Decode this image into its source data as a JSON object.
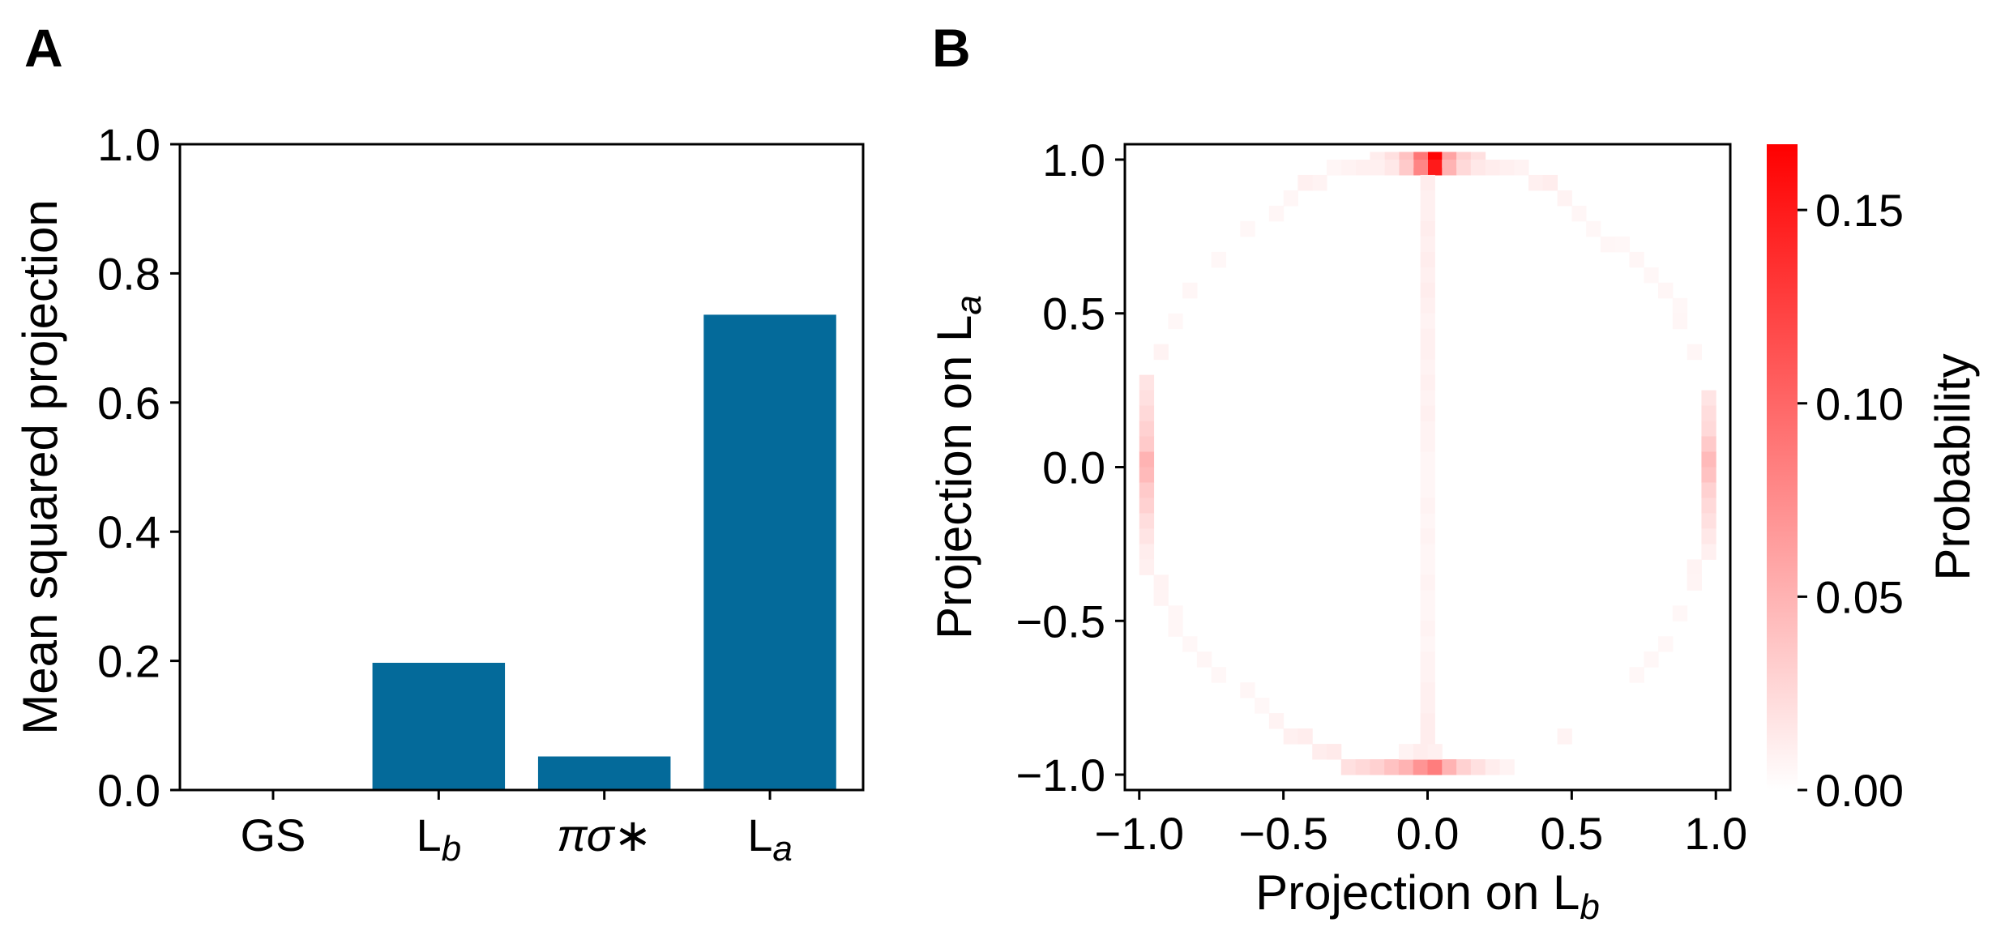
{
  "panel_labels": {
    "a": "A",
    "b": "B"
  },
  "chart_data": [
    {
      "type": "bar",
      "panel": "A",
      "categories": [
        "GS",
        "L_b",
        "πσ*",
        "L_a"
      ],
      "category_labels": [
        {
          "base": "GS",
          "sub": ""
        },
        {
          "base": "L",
          "sub": "b"
        },
        {
          "base": "πσ∗",
          "sub": ""
        },
        {
          "base": "L",
          "sub": "a"
        }
      ],
      "values": [
        0.0,
        0.197,
        0.052,
        0.736
      ],
      "ylabel": "Mean squared projection",
      "xlabel": "",
      "ylim": [
        0.0,
        1.0
      ],
      "yticks": [
        0.0,
        0.2,
        0.4,
        0.6,
        0.8,
        1.0
      ],
      "ytick_labels": [
        "0.0",
        "0.2",
        "0.4",
        "0.6",
        "0.8",
        "1.0"
      ],
      "bar_color": "#046a9a",
      "grid": false
    },
    {
      "type": "heatmap",
      "panel": "B",
      "xlabel": {
        "base": "Projection on L",
        "sub": "b"
      },
      "ylabel": {
        "base": "Projection on L",
        "sub": "a"
      },
      "xlim": [
        -1.05,
        1.05
      ],
      "ylim": [
        -1.05,
        1.05
      ],
      "bins": 42,
      "xticks": [
        -1.0,
        -0.5,
        0.0,
        0.5,
        1.0
      ],
      "xtick_labels": [
        "−1.0",
        "−0.5",
        "0.0",
        "0.5",
        "1.0"
      ],
      "yticks": [
        -1.0,
        -0.5,
        0.0,
        0.5,
        1.0
      ],
      "ytick_labels": [
        "−1.0",
        "−0.5",
        "0.0",
        "0.5",
        "1.0"
      ],
      "cells": [
        [
          0.025,
          1.0,
          0.165
        ],
        [
          0.025,
          0.975,
          0.15
        ],
        [
          -0.025,
          1.0,
          0.09
        ],
        [
          -0.025,
          0.975,
          0.08
        ],
        [
          0.075,
          1.0,
          0.06
        ],
        [
          0.075,
          0.975,
          0.05
        ],
        [
          -0.075,
          1.0,
          0.04
        ],
        [
          -0.075,
          0.975,
          0.035
        ],
        [
          0.125,
          1.0,
          0.03
        ],
        [
          0.125,
          0.975,
          0.025
        ],
        [
          0.175,
          1.0,
          0.02
        ],
        [
          0.175,
          0.975,
          0.015
        ],
        [
          -0.125,
          1.0,
          0.02
        ],
        [
          -0.125,
          0.975,
          0.015
        ],
        [
          -0.175,
          1.0,
          0.012
        ],
        [
          -0.175,
          0.975,
          0.01
        ],
        [
          0.225,
          0.975,
          0.012
        ],
        [
          0.275,
          0.975,
          0.01
        ],
        [
          0.325,
          0.975,
          0.008
        ],
        [
          -0.225,
          0.975,
          0.01
        ],
        [
          -0.275,
          0.975,
          0.008
        ],
        [
          -0.325,
          0.975,
          0.006
        ],
        [
          0.375,
          0.925,
          0.01
        ],
        [
          0.425,
          0.925,
          0.012
        ],
        [
          -0.375,
          0.925,
          0.008
        ],
        [
          -0.425,
          0.925,
          0.01
        ],
        [
          0.475,
          0.875,
          0.008
        ],
        [
          -0.475,
          0.875,
          0.006
        ],
        [
          -0.525,
          0.825,
          0.006
        ],
        [
          0.525,
          0.825,
          0.006
        ],
        [
          0.575,
          0.775,
          0.005
        ],
        [
          0.625,
          0.725,
          0.006
        ],
        [
          0.675,
          0.725,
          0.005
        ],
        [
          0.725,
          0.675,
          0.006
        ],
        [
          -0.625,
          0.775,
          0.005
        ],
        [
          -0.725,
          0.675,
          0.005
        ],
        [
          0.775,
          0.625,
          0.005
        ],
        [
          0.825,
          0.575,
          0.006
        ],
        [
          -0.825,
          0.575,
          0.006
        ],
        [
          0.875,
          0.525,
          0.005
        ],
        [
          0.875,
          0.475,
          0.006
        ],
        [
          -0.875,
          0.475,
          0.005
        ],
        [
          0.925,
          0.375,
          0.006
        ],
        [
          -0.925,
          0.375,
          0.008
        ],
        [
          -0.975,
          0.275,
          0.018
        ],
        [
          -0.975,
          0.225,
          0.02
        ],
        [
          -0.975,
          0.175,
          0.025
        ],
        [
          -0.975,
          0.125,
          0.03
        ],
        [
          -0.975,
          0.075,
          0.035
        ],
        [
          -0.975,
          0.025,
          0.05
        ],
        [
          -0.975,
          -0.025,
          0.045
        ],
        [
          -0.975,
          -0.075,
          0.035
        ],
        [
          -0.975,
          -0.125,
          0.03
        ],
        [
          -0.975,
          -0.175,
          0.022
        ],
        [
          -0.975,
          -0.225,
          0.018
        ],
        [
          -0.975,
          -0.275,
          0.012
        ],
        [
          -0.975,
          -0.325,
          0.01
        ],
        [
          0.975,
          0.225,
          0.018
        ],
        [
          0.975,
          0.175,
          0.022
        ],
        [
          0.975,
          0.125,
          0.025
        ],
        [
          0.975,
          0.075,
          0.035
        ],
        [
          0.975,
          0.025,
          0.045
        ],
        [
          0.975,
          -0.025,
          0.04
        ],
        [
          0.975,
          -0.075,
          0.03
        ],
        [
          0.975,
          -0.125,
          0.025
        ],
        [
          0.975,
          -0.175,
          0.02
        ],
        [
          0.975,
          -0.225,
          0.015
        ],
        [
          0.975,
          -0.275,
          0.01
        ],
        [
          0.925,
          -0.325,
          0.008
        ],
        [
          0.925,
          -0.375,
          0.007
        ],
        [
          -0.925,
          -0.375,
          0.008
        ],
        [
          -0.925,
          -0.425,
          0.007
        ],
        [
          -0.875,
          -0.475,
          0.006
        ],
        [
          -0.875,
          -0.525,
          0.006
        ],
        [
          -0.825,
          -0.575,
          0.005
        ],
        [
          -0.775,
          -0.625,
          0.006
        ],
        [
          -0.725,
          -0.675,
          0.005
        ],
        [
          0.875,
          -0.475,
          0.005
        ],
        [
          0.825,
          -0.575,
          0.005
        ],
        [
          0.775,
          -0.625,
          0.005
        ],
        [
          -0.625,
          -0.725,
          0.006
        ],
        [
          -0.575,
          -0.775,
          0.005
        ],
        [
          -0.525,
          -0.825,
          0.008
        ],
        [
          -0.475,
          -0.875,
          0.01
        ],
        [
          -0.425,
          -0.875,
          0.012
        ],
        [
          -0.375,
          -0.925,
          0.012
        ],
        [
          -0.325,
          -0.925,
          0.014
        ],
        [
          -0.275,
          -0.975,
          0.02
        ],
        [
          -0.225,
          -0.975,
          0.025
        ],
        [
          -0.175,
          -0.975,
          0.03
        ],
        [
          -0.125,
          -0.975,
          0.04
        ],
        [
          -0.075,
          -0.975,
          0.05
        ],
        [
          -0.025,
          -0.975,
          0.07
        ],
        [
          0.025,
          -0.975,
          0.085
        ],
        [
          0.075,
          -0.975,
          0.05
        ],
        [
          0.125,
          -0.975,
          0.03
        ],
        [
          0.175,
          -0.975,
          0.02
        ],
        [
          0.225,
          -0.975,
          0.012
        ],
        [
          0.275,
          -0.975,
          0.008
        ],
        [
          -0.075,
          -0.925,
          0.008
        ],
        [
          -0.025,
          -0.925,
          0.012
        ],
        [
          0.025,
          -0.925,
          0.01
        ],
        [
          0.475,
          -0.875,
          0.008
        ],
        [
          0.725,
          -0.675,
          0.005
        ],
        [
          0.0,
          0.925,
          0.012
        ],
        [
          0.0,
          0.875,
          0.01
        ],
        [
          0.0,
          0.825,
          0.01
        ],
        [
          0.0,
          0.775,
          0.012
        ],
        [
          0.0,
          0.725,
          0.01
        ],
        [
          0.0,
          0.675,
          0.012
        ],
        [
          0.0,
          0.625,
          0.01
        ],
        [
          0.0,
          0.575,
          0.012
        ],
        [
          0.0,
          0.525,
          0.01
        ],
        [
          0.0,
          0.475,
          0.008
        ],
        [
          0.0,
          0.425,
          0.01
        ],
        [
          0.0,
          0.375,
          0.01
        ],
        [
          0.0,
          0.325,
          0.008
        ],
        [
          0.0,
          0.275,
          0.01
        ],
        [
          0.0,
          0.225,
          0.008
        ],
        [
          0.0,
          0.175,
          0.01
        ],
        [
          0.0,
          0.125,
          0.008
        ],
        [
          0.0,
          0.075,
          0.008
        ],
        [
          0.0,
          0.025,
          0.006
        ],
        [
          0.0,
          -0.025,
          0.006
        ],
        [
          0.0,
          -0.075,
          0.006
        ],
        [
          0.0,
          -0.125,
          0.008
        ],
        [
          0.0,
          -0.175,
          0.006
        ],
        [
          0.0,
          -0.225,
          0.008
        ],
        [
          0.0,
          -0.275,
          0.006
        ],
        [
          0.0,
          -0.325,
          0.006
        ],
        [
          0.0,
          -0.375,
          0.008
        ],
        [
          0.0,
          -0.425,
          0.006
        ],
        [
          0.0,
          -0.475,
          0.006
        ],
        [
          0.0,
          -0.525,
          0.008
        ],
        [
          0.0,
          -0.575,
          0.006
        ],
        [
          0.0,
          -0.625,
          0.008
        ],
        [
          0.0,
          -0.675,
          0.008
        ],
        [
          0.0,
          -0.725,
          0.01
        ],
        [
          0.0,
          -0.775,
          0.01
        ],
        [
          0.0,
          -0.825,
          0.012
        ],
        [
          0.0,
          -0.875,
          0.012
        ]
      ],
      "colorbar": {
        "label": "Probability",
        "range": [
          0.0,
          0.167
        ],
        "ticks": [
          0.0,
          0.05,
          0.1,
          0.15
        ],
        "tick_labels": [
          "0.00",
          "0.05",
          "0.10",
          "0.15"
        ],
        "colormap": [
          "#ffffff",
          "#ff0000"
        ]
      }
    }
  ]
}
